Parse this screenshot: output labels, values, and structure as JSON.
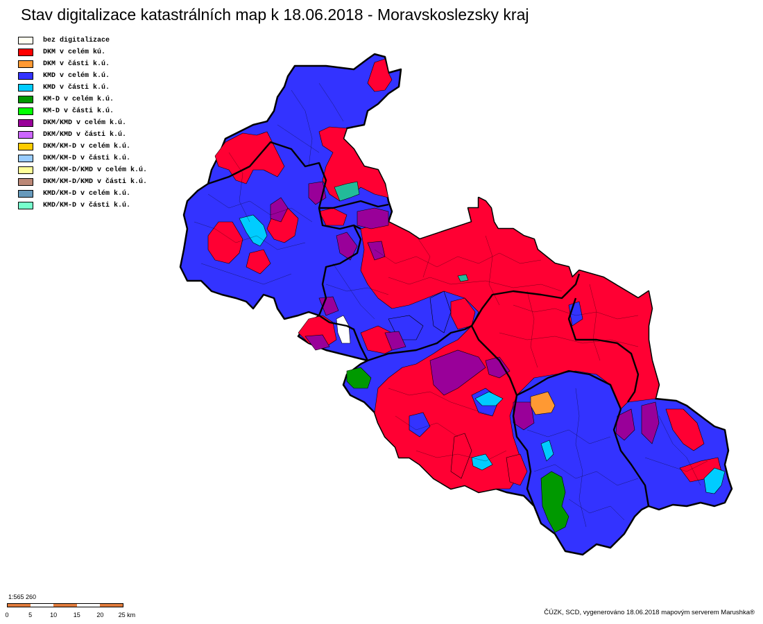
{
  "title": "Stav digitalizace katastrálních map k 18.06.2018 - Moravskoslezsky kraj",
  "legend": [
    {
      "label": "bez digitalizace",
      "color": "#fffff0"
    },
    {
      "label": "DKM v celém kú.",
      "color": "#ff0000"
    },
    {
      "label": "DKM v části k.ú.",
      "color": "#ff9933"
    },
    {
      "label": "KMD v celém k.ú.",
      "color": "#3333ff"
    },
    {
      "label": "KMD v části k.ú.",
      "color": "#00ccff"
    },
    {
      "label": "KM-D v celém k.ú.",
      "color": "#009900"
    },
    {
      "label": "KM-D v části k.ú.",
      "color": "#00ff00"
    },
    {
      "label": "DKM/KMD v celém k.ú.",
      "color": "#990099"
    },
    {
      "label": "DKM/KMD v části k.ú.",
      "color": "#cc66ff"
    },
    {
      "label": "DKM/KM-D v celém k.ú.",
      "color": "#ffcc00"
    },
    {
      "label": "DKM/KM-D v části k.ú.",
      "color": "#99ccff"
    },
    {
      "label": "DKM/KM-D/KMD v celém k.ú.",
      "color": "#ffff99"
    },
    {
      "label": "DKM/KM-D/KMD v části k.ú.",
      "color": "#bb8877"
    },
    {
      "label": "KMD/KM-D v celém k.ú.",
      "color": "#6699bb"
    },
    {
      "label": "KMD/KM-D v části k.ú.",
      "color": "#77ffcc"
    }
  ],
  "scale": {
    "ratio": "1:565 260",
    "ticks": [
      "0",
      "5",
      "10",
      "15",
      "20",
      "25 km"
    ],
    "colors": [
      "#e07b3c",
      "#ffffff",
      "#e07b3c",
      "#ffffff",
      "#e07b3c"
    ]
  },
  "attribution": "ČÚZK, SCD, vygenerováno 18.06.2018 mapovým serverem Marushka®"
}
